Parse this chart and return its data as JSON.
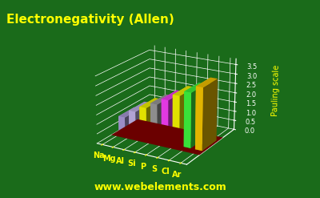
{
  "title": "Electronegativity (Allen)",
  "ylabel": "Pauling scale",
  "watermark": "www.webelements.com",
  "background_color": "#1a6b1a",
  "floor_color": "#8b0000",
  "elements": [
    "Na",
    "Mg",
    "Al",
    "Si",
    "P",
    "S",
    "Cl",
    "Ar"
  ],
  "values": [
    0.869,
    1.293,
    1.613,
    1.916,
    2.253,
    2.589,
    2.869,
    3.242
  ],
  "colors": [
    "#b0a0e0",
    "#c8b8f0",
    "#ffff00",
    "#a0a0a0",
    "#ff40ff",
    "#ffff00",
    "#40ff40",
    "#ffcc00"
  ],
  "ylim": [
    0,
    3.8
  ],
  "yticks": [
    0.0,
    0.5,
    1.0,
    1.5,
    2.0,
    2.5,
    3.0,
    3.5
  ],
  "title_color": "#ffff00",
  "title_fontsize": 11,
  "label_color": "#ffff00",
  "tick_color": "#ffffff",
  "grid_color": "#ffffff",
  "watermark_color": "#ffff00",
  "elev": 20,
  "azim": -60,
  "bar_width": 0.6,
  "bar_depth": 0.6
}
